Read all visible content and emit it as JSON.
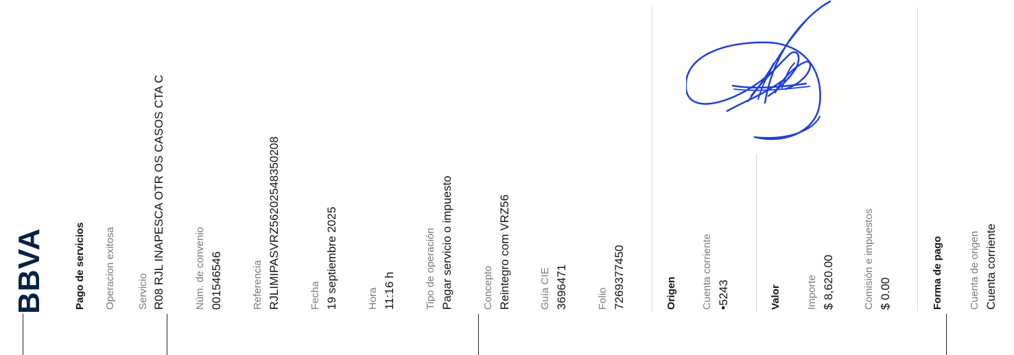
{
  "header": {
    "logo_text": "BBVA",
    "title": "Pago de servicios",
    "status": "Operacion exitosa"
  },
  "details": [
    {
      "label": "Servicio",
      "value": "R08 RJL INAPESCA OTR OS CASOS CTA C"
    },
    {
      "label": "Núm. de convenio",
      "value": "001546546"
    },
    {
      "label": "Referencia",
      "value": "RJLIMIPASVRZ562025483502​08"
    },
    {
      "label": "Fecha",
      "value": "19 septiembre 2025"
    },
    {
      "label": "Hora",
      "value": "11:16 h"
    },
    {
      "label": "Tipo de operación",
      "value": "Pagar servicio o impuesto"
    },
    {
      "label": "Concepto",
      "value": "Reintegro com VRZ56"
    },
    {
      "label": "Guía CIE",
      "value": "3696471"
    },
    {
      "label": "Folio",
      "value": "7269377450"
    }
  ],
  "origin": {
    "section_title": "Origen",
    "label": "Cuenta corriente",
    "value": "•5243"
  },
  "valor": {
    "section_title": "Valor",
    "importe_label": "Importe",
    "importe_value": "$ 8,620.00",
    "comision_label": "Comisión e impuestos",
    "comision_value": "$ 0.00"
  },
  "forma_pago": {
    "section_title": "Forma de pago",
    "label": "Cuenta de origen",
    "value": "Cuenta corriente"
  },
  "signature_color": "#1f3fd8"
}
